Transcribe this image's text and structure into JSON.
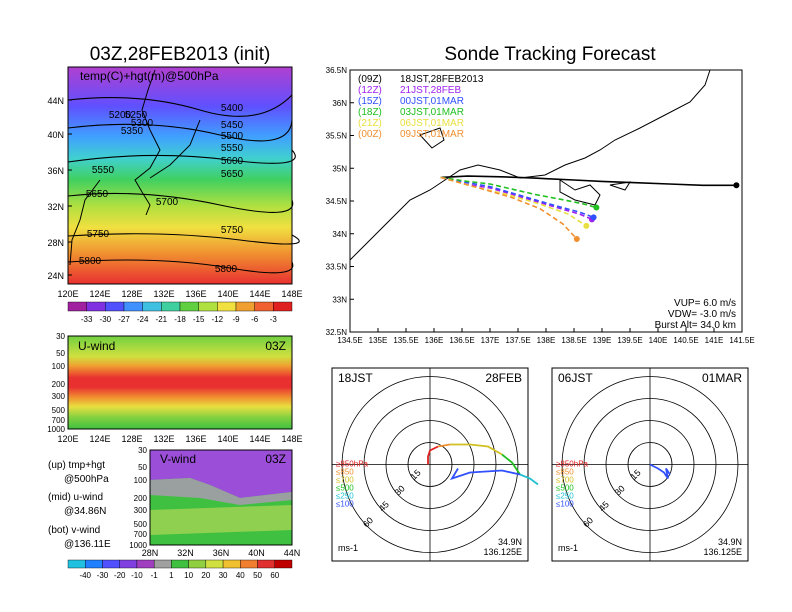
{
  "left_title": "03Z,28FEB2013 (init)",
  "right_title": "Sonde Tracking Forecast",
  "upper_map": {
    "label": "temp(C)+hgt(m)@500hPa",
    "lat_ticks": [
      "44N",
      "40N",
      "36N",
      "32N",
      "28N",
      "24N"
    ],
    "lon_ticks": [
      "120E",
      "124E",
      "128E",
      "132E",
      "136E",
      "140E",
      "144E",
      "148E"
    ],
    "contour_labels": [
      "5200",
      "5250",
      "5300",
      "5350",
      "5400",
      "5450",
      "5500",
      "5550",
      "5600",
      "5650",
      "5550",
      "5650",
      "5700",
      "5750",
      "5750",
      "5800",
      "5800"
    ],
    "colorbar_ticks": [
      "-33",
      "-30",
      "-27",
      "-24",
      "-21",
      "-18",
      "-15",
      "-12",
      "-9",
      "-6",
      "-3"
    ]
  },
  "u_panel": {
    "label": "U-wind",
    "time": "03Z",
    "p_ticks": [
      "30",
      "50",
      "100",
      "200",
      "300",
      "500",
      "700",
      "1000"
    ],
    "lon_ticks": [
      "120E",
      "124E",
      "128E",
      "132E",
      "136E",
      "140E",
      "144E",
      "148E"
    ]
  },
  "v_panel": {
    "label": "V-wind",
    "time": "03Z",
    "p_ticks": [
      "30",
      "50",
      "100",
      "200",
      "300",
      "500",
      "700",
      "1000"
    ],
    "lat_ticks": [
      "28N",
      "32N",
      "36N",
      "40N",
      "44N"
    ]
  },
  "notes": [
    "(up) tmp+hgt",
    "@500hPa",
    "(mid) u-wind",
    "@34.86N",
    "(bot) v-wind",
    "@136.11E"
  ],
  "wind_colorbar_ticks": [
    "-40",
    "-30",
    "-20",
    "-10",
    "-1",
    "1",
    "10",
    "20",
    "30",
    "40",
    "50",
    "60"
  ],
  "tracking": {
    "legend": [
      {
        "run": "(09Z)",
        "time": "18JST,28FEB2013",
        "color": "#000000"
      },
      {
        "run": "(12Z)",
        "time": "21JST,28FEB",
        "color": "#a020f0"
      },
      {
        "run": "(15Z)",
        "time": "00JST,01MAR",
        "color": "#3050ff"
      },
      {
        "run": "(18Z)",
        "time": "03JST,01MAR",
        "color": "#20c020"
      },
      {
        "run": "(21Z)",
        "time": "06JST,01MAR",
        "color": "#e8e040"
      },
      {
        "run": "(00Z)",
        "time": "09JST,01MAR",
        "color": "#f09030"
      }
    ],
    "lat_ticks": [
      "36.5N",
      "36N",
      "35.5N",
      "35N",
      "34.5N",
      "34N",
      "33.5N",
      "33N",
      "32.5N"
    ],
    "lon_ticks": [
      "134.5E",
      "135E",
      "135.5E",
      "136E",
      "136.5E",
      "137E",
      "137.5E",
      "138E",
      "138.5E",
      "139E",
      "139.5E",
      "140E",
      "140.5E",
      "141E",
      "141.5E"
    ],
    "info": [
      "VUP=  6.0  m/s",
      "VDW= -3.0  m/s",
      "Burst Alt=  34.0  km"
    ]
  },
  "chart_data": [
    {
      "type": "line",
      "title": "Sonde Tracking Forecast",
      "xlim": [
        134.5,
        141.5
      ],
      "ylim": [
        32.5,
        36.5
      ],
      "series": [
        {
          "name": "(09Z) 18JST,28FEB2013",
          "x": [
            136.12,
            136.6,
            137.2,
            137.8,
            138.0,
            138.5,
            139.0,
            139.6,
            140.2,
            140.8,
            141.4
          ],
          "y": [
            34.86,
            34.88,
            34.87,
            34.85,
            34.84,
            34.82,
            34.8,
            34.78,
            34.76,
            34.74,
            34.74
          ]
        },
        {
          "name": "(12Z) 21JST,28FEB",
          "x": [
            136.12,
            136.6,
            137.0,
            137.4,
            137.8,
            138.2,
            138.6,
            138.82
          ],
          "y": [
            34.86,
            34.75,
            34.7,
            34.6,
            34.5,
            34.4,
            34.3,
            34.22
          ]
        },
        {
          "name": "(15Z) 00JST,01MAR",
          "x": [
            136.12,
            136.6,
            137.0,
            137.4,
            137.8,
            138.2,
            138.6,
            138.85
          ],
          "y": [
            34.86,
            34.78,
            34.72,
            34.62,
            34.52,
            34.42,
            34.33,
            34.25
          ]
        },
        {
          "name": "(18Z) 03JST,01MAR",
          "x": [
            136.12,
            136.6,
            137.0,
            137.4,
            137.8,
            138.3,
            138.7,
            138.9
          ],
          "y": [
            34.86,
            34.8,
            34.76,
            34.68,
            34.6,
            34.52,
            34.45,
            34.4
          ]
        },
        {
          "name": "(21Z) 06JST,01MAR",
          "x": [
            136.12,
            136.7,
            137.3,
            137.9,
            138.4,
            138.72
          ],
          "y": [
            34.86,
            34.72,
            34.6,
            34.45,
            34.3,
            34.12
          ]
        },
        {
          "name": "(00Z) 09JST,01MAR",
          "x": [
            136.12,
            136.8,
            137.4,
            137.9,
            138.3,
            138.55
          ],
          "y": [
            34.86,
            34.7,
            34.55,
            34.38,
            34.15,
            33.92
          ]
        }
      ]
    },
    {
      "type": "scatter",
      "title": "18JST 28FEB",
      "location": [
        "34.9N",
        "136.125E"
      ],
      "legend": [
        "≥850hPa",
        "≤850",
        "≤700",
        "≤500",
        "≤250",
        "≤100"
      ],
      "ring_labels": [
        "15",
        "30",
        "45",
        "60"
      ],
      "unit": "ms-1"
    },
    {
      "type": "scatter",
      "title": "06JST 01MAR",
      "location": [
        "34.9N",
        "136.125E"
      ],
      "legend": [
        "≥850hPa",
        "≤850",
        "≤700",
        "≤500",
        "≤250",
        "≤100"
      ],
      "ring_labels": [
        "15",
        "30",
        "45",
        "60"
      ],
      "unit": "ms-1"
    }
  ],
  "hodo1": {
    "time": "18JST",
    "date": "28FEB",
    "lat": "34.9N",
    "lon": "136.125E",
    "unit": "ms-1"
  },
  "hodo2": {
    "time": "06JST",
    "date": "01MAR",
    "lat": "34.9N",
    "lon": "136.125E",
    "unit": "ms-1"
  },
  "hodo_legend": [
    {
      "label": "≥850hPa",
      "color": "#e02020"
    },
    {
      "label": "≤850",
      "color": "#f09030"
    },
    {
      "label": "≤700",
      "color": "#d0c020"
    },
    {
      "label": "≤500",
      "color": "#20c020"
    },
    {
      "label": "≤250",
      "color": "#20c0d0"
    },
    {
      "label": "≤100",
      "color": "#3050ff"
    }
  ],
  "hodo_rings": [
    "15",
    "30",
    "45",
    "60"
  ]
}
